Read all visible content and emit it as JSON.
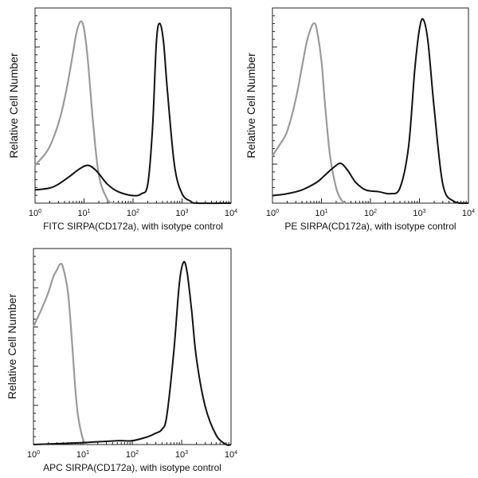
{
  "chart_data": [
    {
      "type": "line",
      "xlabel": "FITC SIRPA(CD172a), with isotype control",
      "ylabel": "Relative Cell Number",
      "xscale": "log",
      "xlim": [
        1,
        10000
      ],
      "ylim": [
        0,
        100
      ],
      "xticks": [
        "10^0",
        "10^1",
        "10^2",
        "10^3",
        "10^4"
      ],
      "series": [
        {
          "role": "isotype",
          "color": "#9a9a9a",
          "x": [
            1,
            1.5,
            2,
            3,
            4,
            5,
            6,
            7,
            8.5,
            10,
            12,
            15,
            20,
            30,
            40
          ],
          "y": [
            20,
            25,
            30,
            42,
            55,
            68,
            80,
            90,
            96,
            92,
            75,
            45,
            15,
            2,
            0
          ]
        },
        {
          "role": "stained",
          "color": "#111111",
          "x": [
            1,
            2,
            3,
            5,
            8,
            12,
            18,
            30,
            50,
            100,
            150,
            200,
            250,
            300,
            350,
            420,
            500,
            700,
            1000,
            1500,
            2000,
            10000
          ],
          "y": [
            7,
            8,
            10,
            14,
            18,
            20,
            17,
            10,
            6,
            4,
            5,
            10,
            40,
            85,
            95,
            85,
            60,
            20,
            5,
            1,
            0,
            0
          ]
        }
      ]
    },
    {
      "type": "line",
      "xlabel": "PE SIRPA(CD172a), with isotype control",
      "ylabel": "Relative Cell Number",
      "xscale": "log",
      "xlim": [
        1,
        10000
      ],
      "ylim": [
        0,
        100
      ],
      "xticks": [
        "10^0",
        "10^1",
        "10^2",
        "10^3",
        "10^4"
      ],
      "series": [
        {
          "role": "isotype",
          "color": "#9a9a9a",
          "x": [
            1,
            1.5,
            2,
            3,
            4,
            5,
            6,
            7,
            8,
            10,
            12,
            15,
            20,
            25,
            30
          ],
          "y": [
            25,
            32,
            38,
            55,
            72,
            85,
            92,
            95,
            92,
            75,
            50,
            25,
            8,
            2,
            0
          ]
        },
        {
          "role": "stained",
          "color": "#111111",
          "x": [
            1,
            2,
            4,
            8,
            12,
            18,
            25,
            35,
            50,
            80,
            150,
            250,
            400,
            600,
            800,
            1000,
            1200,
            1500,
            2000,
            3000,
            5000,
            10000
          ],
          "y": [
            4,
            5,
            7,
            11,
            15,
            19,
            21,
            17,
            11,
            7,
            6,
            5,
            8,
            30,
            70,
            92,
            97,
            85,
            50,
            10,
            1,
            0
          ]
        }
      ]
    },
    {
      "type": "line",
      "xlabel": "APC SIRPA(CD172a), with isotype control",
      "ylabel": "Relative Cell Number",
      "xscale": "log",
      "xlim": [
        1,
        10000
      ],
      "ylim": [
        0,
        100
      ],
      "xticks": [
        "10^0",
        "10^1",
        "10^2",
        "10^3",
        "10^4"
      ],
      "series": [
        {
          "role": "isotype",
          "color": "#9a9a9a",
          "x": [
            1,
            1.5,
            2,
            2.5,
            3,
            3.5,
            4,
            5,
            6,
            7,
            8,
            10,
            12
          ],
          "y": [
            62,
            72,
            80,
            88,
            92,
            95,
            93,
            80,
            55,
            30,
            15,
            3,
            0
          ]
        },
        {
          "role": "stained",
          "color": "#111111",
          "x": [
            1,
            10,
            50,
            100,
            200,
            300,
            400,
            500,
            700,
            900,
            1100,
            1300,
            1600,
            2000,
            3000,
            5000,
            8000,
            10000
          ],
          "y": [
            0,
            1,
            2,
            2,
            4,
            6,
            8,
            15,
            50,
            85,
            96,
            90,
            70,
            45,
            20,
            5,
            0,
            0
          ]
        }
      ]
    }
  ]
}
